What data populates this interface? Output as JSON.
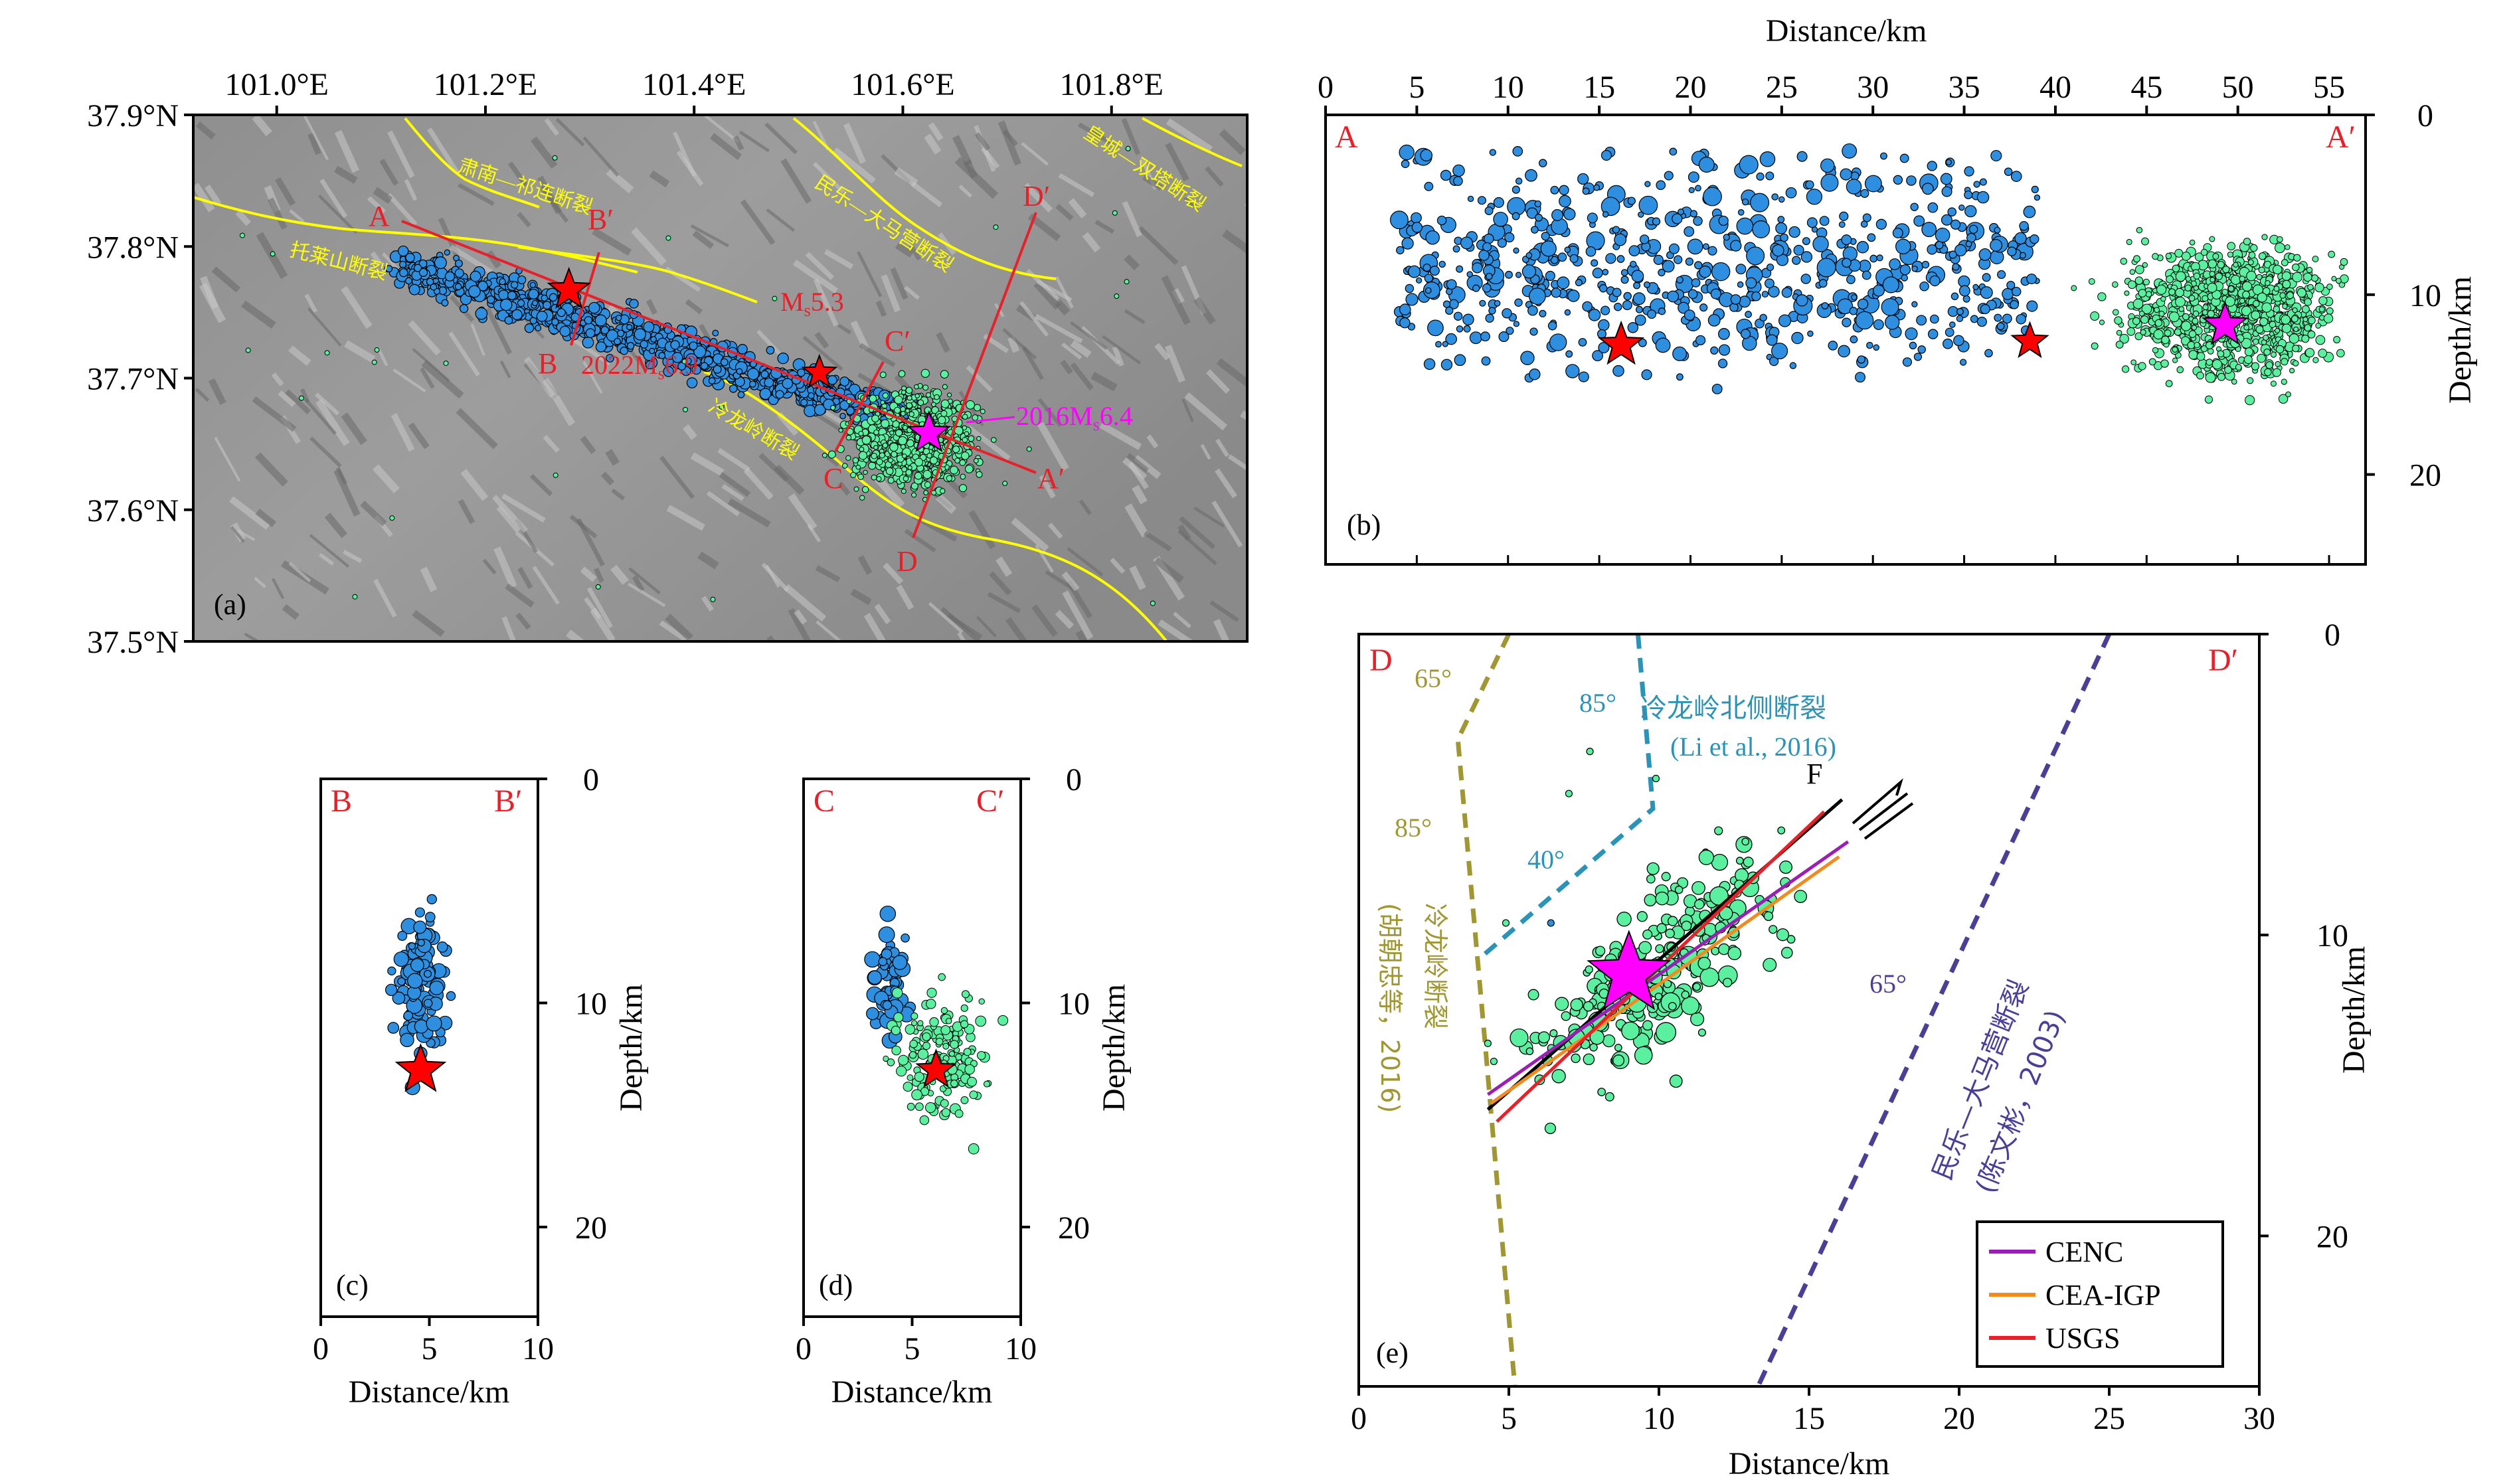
{
  "figure": {
    "panels": [
      "(a)",
      "(b)",
      "(c)",
      "(d)",
      "(e)"
    ]
  },
  "chart_data": [
    {
      "id": "a",
      "type": "map",
      "title": "(a)",
      "lon_ticks": [
        "101.0°E",
        "101.2°E",
        "101.4°E",
        "101.6°E",
        "101.8°E"
      ],
      "lon_values": [
        101.0,
        101.2,
        101.4,
        101.6,
        101.8
      ],
      "lat_ticks": [
        "37.9°N",
        "37.8°N",
        "37.7°N",
        "37.6°N",
        "37.5°N"
      ],
      "lat_values": [
        37.9,
        37.8,
        37.7,
        37.6,
        37.5
      ],
      "xlim": [
        100.92,
        101.93
      ],
      "ylim": [
        37.5,
        37.9
      ],
      "fault_labels": [
        "肃南—祁连断裂",
        "民乐—大马营断裂",
        "皇城—双塔断裂",
        "托莱山断裂",
        "冷龙岭断裂"
      ],
      "profile_labels": [
        "A",
        "A′",
        "B",
        "B′",
        "C",
        "C′",
        "D",
        "D′"
      ],
      "event_labels": {
        "mainshock_2022": "2022M",
        "mainshock_2022_sub": "s",
        "mainshock_2022_mag": "6.9",
        "aftershock": "M",
        "aftershock_sub": "s",
        "aftershock_mag": "5.3",
        "event_2016": "2016M",
        "event_2016_sub": "s",
        "event_2016_mag": "6.4"
      },
      "epicenters": [
        {
          "name": "2022 Ms6.9",
          "lon": 101.28,
          "lat": 37.767,
          "color": "#ff0000"
        },
        {
          "name": "Ms5.3",
          "lon": 101.52,
          "lat": 37.704,
          "color": "#ff0000"
        },
        {
          "name": "2016 Ms6.4",
          "lon": 101.625,
          "lat": 37.658,
          "color": "#ff00ff"
        }
      ]
    },
    {
      "id": "b",
      "type": "scatter",
      "title": "(b)",
      "xlabel": "Distance/km",
      "ylabel": "Depth/km",
      "xlim": [
        0,
        57
      ],
      "ylim": [
        0,
        25
      ],
      "xticks": [
        0,
        5,
        10,
        15,
        20,
        25,
        30,
        35,
        40,
        45,
        50,
        55
      ],
      "yticks": [
        0,
        10,
        20
      ],
      "profile_start": "A",
      "profile_end": "A′",
      "stars": [
        {
          "x": 16.2,
          "y": 12.8,
          "color": "#ff0000"
        },
        {
          "x": 38.6,
          "y": 12.6,
          "color": "#ff0000"
        },
        {
          "x": 49.3,
          "y": 11.7,
          "color": "#ff00ff"
        }
      ]
    },
    {
      "id": "c",
      "type": "scatter",
      "title": "(c)",
      "xlabel": "Distance/km",
      "ylabel": "Depth/km",
      "xlim": [
        0,
        10
      ],
      "ylim": [
        0,
        24
      ],
      "xticks": [
        0,
        5,
        10
      ],
      "yticks": [
        0,
        10,
        20
      ],
      "profile_start": "B",
      "profile_end": "B′",
      "stars": [
        {
          "x": 4.6,
          "y": 13.0,
          "color": "#ff0000"
        }
      ]
    },
    {
      "id": "d",
      "type": "scatter",
      "title": "(d)",
      "xlabel": "Distance/km",
      "ylabel": "Depth/km",
      "xlim": [
        0,
        10
      ],
      "ylim": [
        0,
        24
      ],
      "xticks": [
        0,
        5,
        10
      ],
      "yticks": [
        0,
        10,
        20
      ],
      "profile_start": "C",
      "profile_end": "C′",
      "stars": [
        {
          "x": 6.1,
          "y": 13.0,
          "color": "#ff0000"
        }
      ]
    },
    {
      "id": "e",
      "type": "scatter",
      "title": "(e)",
      "xlabel": "Distance/km",
      "ylabel": "Depth/km",
      "xlim": [
        0,
        30
      ],
      "ylim": [
        0,
        25
      ],
      "xticks": [
        0,
        5,
        10,
        15,
        20,
        25,
        30
      ],
      "yticks": [
        0,
        10,
        20
      ],
      "profile_start": "D",
      "profile_end": "D′",
      "star": {
        "x": 9.0,
        "y": 11.3,
        "color": "#ff00ff"
      },
      "fault_label": "F",
      "faults": [
        {
          "name": "冷龙岭断裂",
          "ref": "(胡朝忠等，2016)",
          "color": "#a09632",
          "dips": [
            "65°",
            "85°"
          ],
          "points": [
            [
              5.0,
              0
            ],
            [
              3.3,
              3.5
            ],
            [
              4.2,
              13.5
            ],
            [
              5.2,
              25
            ]
          ]
        },
        {
          "name": "冷龙岭北侧断裂",
          "ref": "(Li et al., 2016)",
          "color": "#2a93b8",
          "dips": [
            "85°",
            "40°"
          ],
          "points": [
            [
              9.3,
              0
            ],
            [
              9.8,
              5.8
            ],
            [
              4.0,
              10.8
            ]
          ]
        },
        {
          "name": "民乐—大马营断裂",
          "ref": "(陈文彬，2003)",
          "color": "#4a3f96",
          "dips": [
            "65°"
          ],
          "points": [
            [
              25.0,
              0
            ],
            [
              13.3,
              25
            ]
          ]
        }
      ],
      "nodal_planes": [
        {
          "name": "CENC",
          "color": "#9b1fb5",
          "points": [
            [
              4.3,
              15.3
            ],
            [
              16.3,
              6.9
            ]
          ]
        },
        {
          "name": "CEA-IGP",
          "color": "#f28a1e",
          "points": [
            [
              4.4,
              15.6
            ],
            [
              16.0,
              7.4
            ]
          ]
        },
        {
          "name": "USGS",
          "color": "#e8202a",
          "points": [
            [
              4.6,
              16.2
            ],
            [
              15.5,
              5.9
            ]
          ]
        }
      ],
      "legend": [
        "CENC",
        "CEA-IGP",
        "USGS"
      ],
      "legend_position": "bottom-right"
    }
  ]
}
